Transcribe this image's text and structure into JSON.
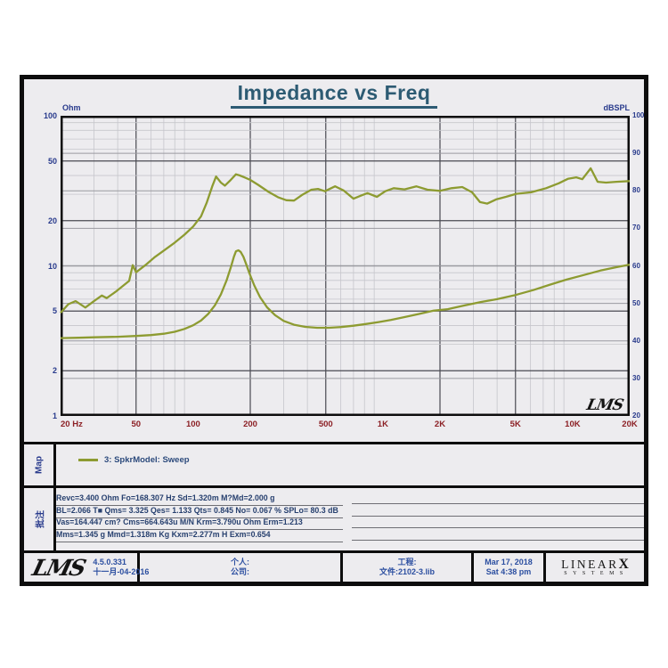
{
  "title": "Impedance vs Freq",
  "chart_data": {
    "type": "line",
    "title": "Impedance vs Freq",
    "plot_logo": "LMS",
    "x_axis": {
      "unit": "Hz",
      "scale": "log",
      "min": 20,
      "max": 20000,
      "ticks": [
        [
          20,
          "20 Hz"
        ],
        [
          50,
          "50"
        ],
        [
          100,
          "100"
        ],
        [
          200,
          "200"
        ],
        [
          500,
          "500"
        ],
        [
          1000,
          "1K"
        ],
        [
          2000,
          "2K"
        ],
        [
          5000,
          "5K"
        ],
        [
          10000,
          "10K"
        ],
        [
          20000,
          "20K"
        ]
      ]
    },
    "y_left": {
      "label": "Ohm",
      "scale": "log",
      "min": 1,
      "max": 100,
      "ticks": [
        100,
        50,
        20,
        10,
        5,
        2,
        1
      ]
    },
    "y_right": {
      "label": "dBSPL",
      "scale": "linear",
      "min": 20,
      "max": 100,
      "ticks": [
        100,
        90,
        80,
        70,
        60,
        50,
        40,
        30,
        20
      ]
    },
    "grid": {
      "minor_color": "#c6c6cc",
      "major_color": "#4a4a52",
      "spl_color": "#9a9aa0"
    },
    "series": [
      {
        "name": "Impedance (Ohm, left axis)",
        "axis": "left",
        "color": "#8d9b31",
        "points": [
          [
            20,
            3.3
          ],
          [
            25,
            3.32
          ],
          [
            30,
            3.34
          ],
          [
            40,
            3.37
          ],
          [
            50,
            3.41
          ],
          [
            60,
            3.46
          ],
          [
            70,
            3.53
          ],
          [
            80,
            3.64
          ],
          [
            90,
            3.8
          ],
          [
            100,
            4.02
          ],
          [
            110,
            4.32
          ],
          [
            120,
            4.78
          ],
          [
            130,
            5.45
          ],
          [
            140,
            6.45
          ],
          [
            150,
            8.0
          ],
          [
            158,
            9.8
          ],
          [
            164,
            11.5
          ],
          [
            168,
            12.5
          ],
          [
            173,
            12.7
          ],
          [
            178,
            12.4
          ],
          [
            184,
            11.5
          ],
          [
            190,
            10.3
          ],
          [
            198,
            8.9
          ],
          [
            210,
            7.4
          ],
          [
            225,
            6.2
          ],
          [
            245,
            5.3
          ],
          [
            270,
            4.7
          ],
          [
            300,
            4.3
          ],
          [
            340,
            4.05
          ],
          [
            390,
            3.92
          ],
          [
            450,
            3.87
          ],
          [
            520,
            3.87
          ],
          [
            600,
            3.91
          ],
          [
            700,
            3.99
          ],
          [
            820,
            4.1
          ],
          [
            950,
            4.22
          ],
          [
            1100,
            4.36
          ],
          [
            1300,
            4.56
          ],
          [
            1550,
            4.78
          ],
          [
            1850,
            5.03
          ],
          [
            2200,
            5.15
          ],
          [
            2700,
            5.45
          ],
          [
            3300,
            5.75
          ],
          [
            4000,
            6.0
          ],
          [
            5000,
            6.4
          ],
          [
            6200,
            6.9
          ],
          [
            7600,
            7.5
          ],
          [
            9300,
            8.1
          ],
          [
            11500,
            8.7
          ],
          [
            14000,
            9.3
          ],
          [
            17000,
            9.8
          ],
          [
            20000,
            10.2
          ]
        ]
      },
      {
        "name": "SPL (dBSPL, right axis)",
        "axis": "right",
        "color": "#8d9b31",
        "points": [
          [
            20,
            47.5
          ],
          [
            22,
            49.8
          ],
          [
            24,
            50.6
          ],
          [
            27,
            48.9
          ],
          [
            30,
            50.6
          ],
          [
            33,
            52.1
          ],
          [
            35,
            51.4
          ],
          [
            39,
            53.1
          ],
          [
            43,
            54.8
          ],
          [
            46,
            56.0
          ],
          [
            48,
            60.2
          ],
          [
            50,
            58.3
          ],
          [
            56,
            60.2
          ],
          [
            63,
            62.4
          ],
          [
            71,
            64.3
          ],
          [
            80,
            66.2
          ],
          [
            90,
            68.3
          ],
          [
            100,
            70.5
          ],
          [
            110,
            73.2
          ],
          [
            118,
            76.9
          ],
          [
            126,
            81.2
          ],
          [
            132,
            83.8
          ],
          [
            140,
            82.2
          ],
          [
            147,
            81.4
          ],
          [
            157,
            82.8
          ],
          [
            168,
            84.4
          ],
          [
            176,
            84.1
          ],
          [
            186,
            83.6
          ],
          [
            200,
            82.9
          ],
          [
            220,
            81.6
          ],
          [
            250,
            79.7
          ],
          [
            280,
            78.3
          ],
          [
            310,
            77.5
          ],
          [
            340,
            77.4
          ],
          [
            375,
            78.9
          ],
          [
            420,
            80.3
          ],
          [
            455,
            80.5
          ],
          [
            495,
            79.9
          ],
          [
            560,
            81.2
          ],
          [
            620,
            80.1
          ],
          [
            700,
            77.9
          ],
          [
            765,
            78.7
          ],
          [
            830,
            79.4
          ],
          [
            930,
            78.4
          ],
          [
            1030,
            79.9
          ],
          [
            1140,
            80.7
          ],
          [
            1300,
            80.4
          ],
          [
            1500,
            81.2
          ],
          [
            1720,
            80.3
          ],
          [
            2000,
            80.0
          ],
          [
            2300,
            80.7
          ],
          [
            2620,
            81.0
          ],
          [
            2950,
            79.6
          ],
          [
            3250,
            77.0
          ],
          [
            3550,
            76.6
          ],
          [
            3950,
            77.7
          ],
          [
            4450,
            78.4
          ],
          [
            5050,
            79.2
          ],
          [
            6050,
            79.6
          ],
          [
            7250,
            80.7
          ],
          [
            8450,
            82.0
          ],
          [
            9450,
            83.2
          ],
          [
            10450,
            83.6
          ],
          [
            11250,
            83.1
          ],
          [
            12450,
            86.0
          ],
          [
            13550,
            82.4
          ],
          [
            15000,
            82.2
          ],
          [
            17000,
            82.4
          ],
          [
            20000,
            82.6
          ]
        ]
      }
    ]
  },
  "map": {
    "section_label": "Map",
    "legend_entry": "3: SpkrModel: Sweep",
    "swatch_color": "#8d9b31"
  },
  "notes": {
    "section_label": "批注",
    "lines": [
      "Revc=3.400 Ohm  Fo=168.307 Hz  Sd=1.320m M?Md=2.000 g",
      "BL=2.066 T■  Qms= 3.325  Qes= 1.133  Qts= 0.845  No= 0.067 %  SPLo= 80.3 dB",
      "Vas=164.447 cm? Cms=664.643u M/N  Krm=3.790u Ohm  Erm=1.213",
      "Mms=1.345 g  Mmd=1.318m Kg  Kxm=2.277m H  Exm=0.654"
    ]
  },
  "footer": {
    "logo": "LMS",
    "version": "4.5.0.331",
    "date_local": "十一月-04-2016",
    "personal_label": "个人:",
    "company_label": "公司:",
    "project_label": "工程:",
    "file_label": "文件:2102-3.lib",
    "date": "Mar 17, 2018",
    "time": "Sat 4:38 pm",
    "brand": "LINEAR",
    "brand_x": "X",
    "brand_sub": "SYSTEMS"
  }
}
